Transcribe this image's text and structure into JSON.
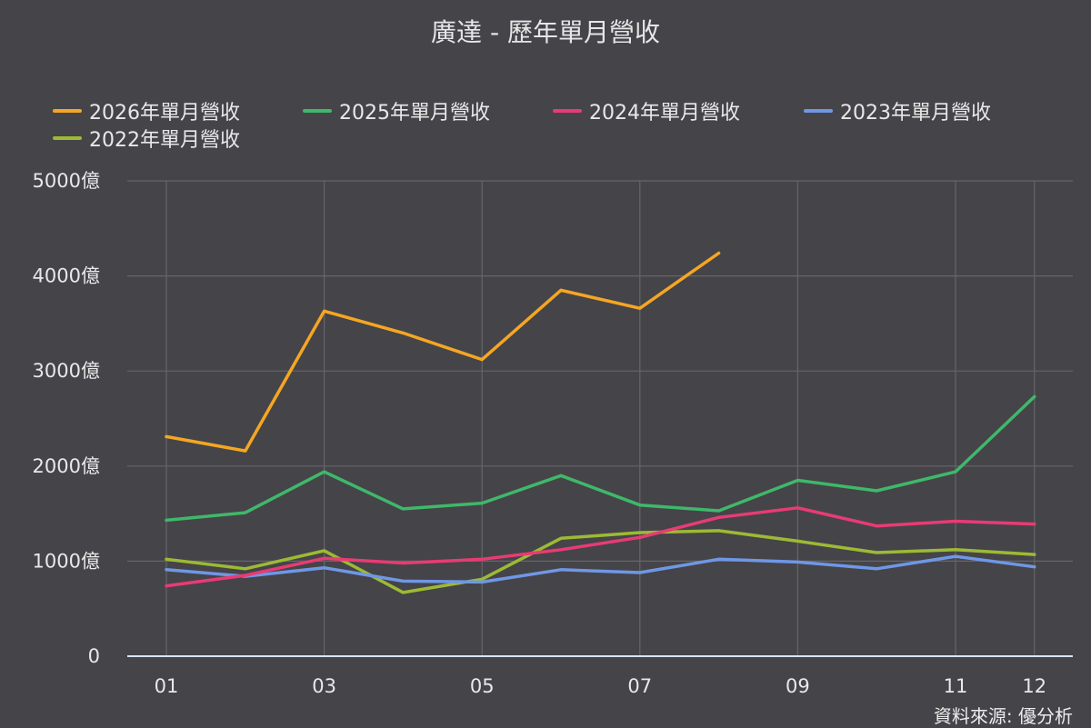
{
  "chart_data": {
    "type": "line",
    "title": "廣達 - 歷年單月營收",
    "source": "資料來源: 優分析",
    "categories": [
      "01",
      "02",
      "03",
      "04",
      "05",
      "06",
      "07",
      "08",
      "09",
      "10",
      "11",
      "12"
    ],
    "x_tick_labels": [
      "01",
      "03",
      "05",
      "07",
      "09",
      "11",
      "12"
    ],
    "y_tick_labels": [
      "0",
      "1000億",
      "2000億",
      "3000億",
      "4000億",
      "5000億"
    ],
    "ylim": [
      0,
      5000
    ],
    "grid": true,
    "legend_position": "top",
    "series": [
      {
        "name": "2026年單月營收",
        "color": "#f5a623",
        "values": [
          2310,
          2160,
          3630,
          3400,
          3120,
          3850,
          3660,
          4240,
          null,
          null,
          null,
          null
        ]
      },
      {
        "name": "2025年單月營收",
        "color": "#3fb86a",
        "values": [
          1430,
          1510,
          1940,
          1550,
          1610,
          1900,
          1590,
          1530,
          1850,
          1740,
          1940,
          2730
        ]
      },
      {
        "name": "2024年單月營收",
        "color": "#e83b74",
        "values": [
          740,
          850,
          1030,
          980,
          1020,
          1120,
          1250,
          1460,
          1560,
          1370,
          1420,
          1390
        ]
      },
      {
        "name": "2023年單月營收",
        "color": "#6f97e6",
        "values": [
          910,
          840,
          930,
          790,
          780,
          910,
          880,
          1020,
          990,
          920,
          1050,
          940
        ]
      },
      {
        "name": "2022年單月營收",
        "color": "#9dba34",
        "values": [
          1020,
          920,
          1110,
          670,
          810,
          1240,
          1300,
          1320,
          1210,
          1090,
          1120,
          1070
        ]
      }
    ]
  }
}
